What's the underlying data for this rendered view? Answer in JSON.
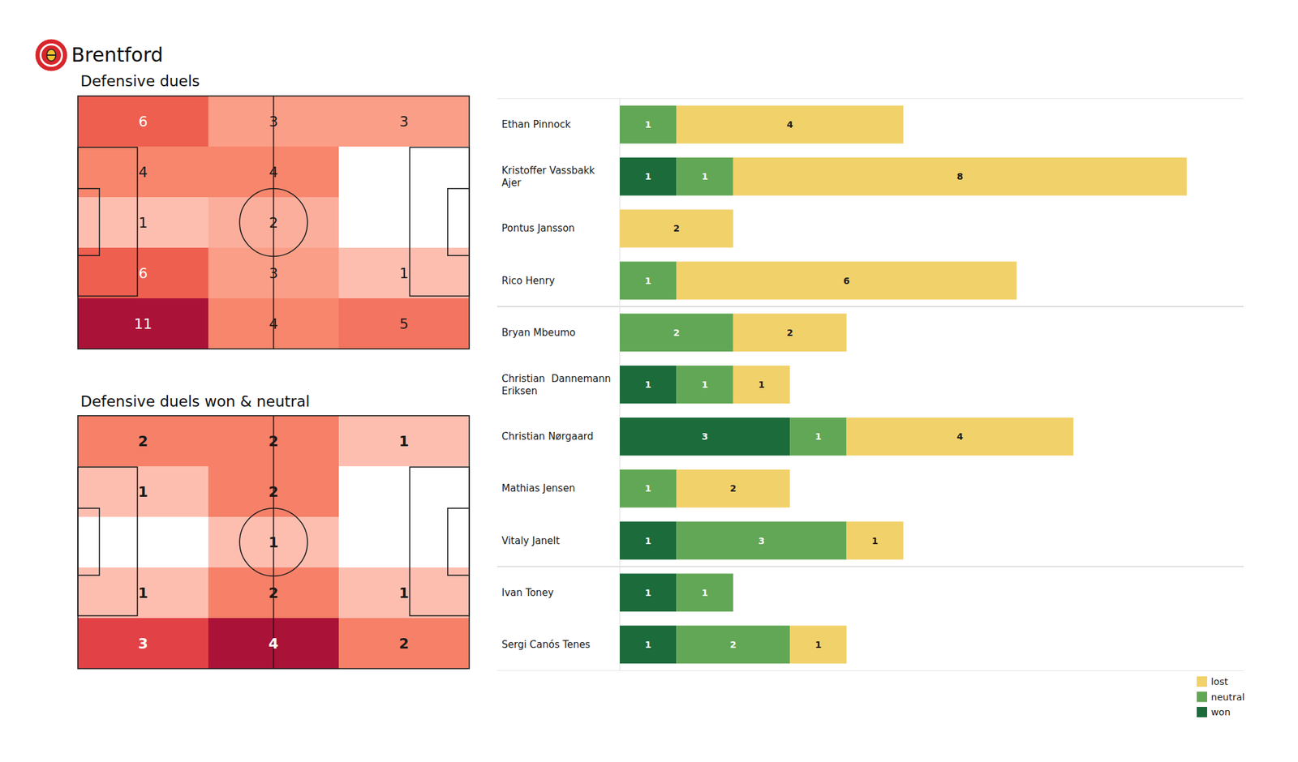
{
  "title": "Brentford",
  "chart_data": [
    {
      "type": "heatmap",
      "title": "Defensive duels",
      "data_labels": true,
      "cells": [
        [
          6,
          3,
          3
        ],
        [
          4,
          4,
          null
        ],
        [
          1,
          2,
          null
        ],
        [
          6,
          3,
          1
        ],
        [
          11,
          4,
          5
        ]
      ]
    },
    {
      "type": "heatmap",
      "title": "Defensive duels won & neutral",
      "data_labels": true,
      "cells": [
        [
          2,
          2,
          1
        ],
        [
          1,
          2,
          null
        ],
        [
          null,
          1,
          null
        ],
        [
          1,
          2,
          1
        ],
        [
          3,
          4,
          2
        ]
      ]
    },
    {
      "type": "bar",
      "orientation": "horizontal",
      "stacked": true,
      "data_labels": true,
      "tick_labels": "y",
      "legend": "lower right",
      "xlim": [
        0,
        11
      ],
      "categories": [
        "Ethan Pinnock",
        "Kristoffer Vassbakk Ajer",
        "Pontus Jansson",
        "Rico Henry",
        "Bryan Mbeumo",
        "Christian  Dannemann Eriksen",
        "Christian Nørgaard",
        "Mathias Jensen",
        "Vitaly Janelt",
        "Ivan Toney",
        "Sergi Canós Tenes"
      ],
      "series": [
        {
          "name": "won",
          "color": "#1b6b3b",
          "values": [
            null,
            1,
            null,
            null,
            null,
            1,
            3,
            null,
            1,
            1,
            1
          ]
        },
        {
          "name": "neutral",
          "color": "#62a755",
          "values": [
            1,
            1,
            null,
            1,
            2,
            1,
            1,
            1,
            3,
            1,
            2
          ]
        },
        {
          "name": "lost",
          "color": "#f1d16a",
          "values": [
            4,
            8,
            2,
            6,
            2,
            1,
            4,
            2,
            1,
            null,
            1
          ]
        }
      ]
    }
  ]
}
